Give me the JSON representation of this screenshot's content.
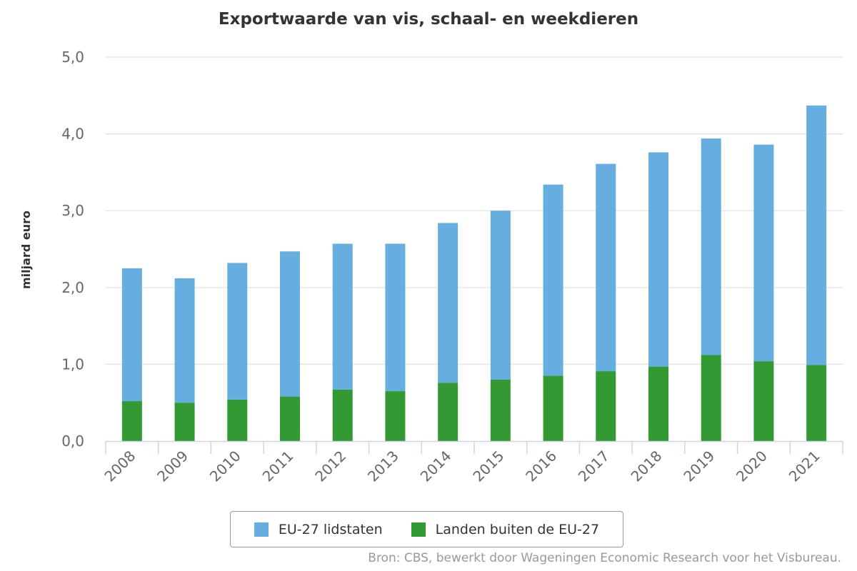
{
  "chart_data": {
    "type": "bar",
    "stacked": true,
    "title": "Exportwaarde van vis, schaal- en weekdieren",
    "ylabel": "miljard euro",
    "xlabel": "",
    "ylim": [
      0,
      5
    ],
    "yticks": [
      "0,0",
      "1,0",
      "2,0",
      "3,0",
      "4,0",
      "5,0"
    ],
    "categories": [
      "2008",
      "2009",
      "2010",
      "2011",
      "2012",
      "2013",
      "2014",
      "2015",
      "2016",
      "2017",
      "2018",
      "2019",
      "2020",
      "2021"
    ],
    "series": [
      {
        "name": "Landen buiten de EU-27",
        "color": "#339933",
        "values": [
          0.52,
          0.5,
          0.54,
          0.58,
          0.67,
          0.65,
          0.76,
          0.8,
          0.85,
          0.91,
          0.97,
          1.12,
          1.04,
          0.99
        ]
      },
      {
        "name": "EU-27 lidstaten",
        "color": "#66aedf",
        "values": [
          1.73,
          1.62,
          1.78,
          1.89,
          1.9,
          1.92,
          2.08,
          2.2,
          2.49,
          2.7,
          2.79,
          2.82,
          2.82,
          3.38
        ]
      }
    ],
    "legend": {
      "position": "bottom",
      "items": [
        {
          "label": "EU-27 lidstaten",
          "color": "#66aedf"
        },
        {
          "label": "Landen buiten de EU-27",
          "color": "#339933"
        }
      ]
    },
    "grid": true
  },
  "source": "Bron: CBS, bewerkt door Wageningen Economic Research voor het Visbureau."
}
